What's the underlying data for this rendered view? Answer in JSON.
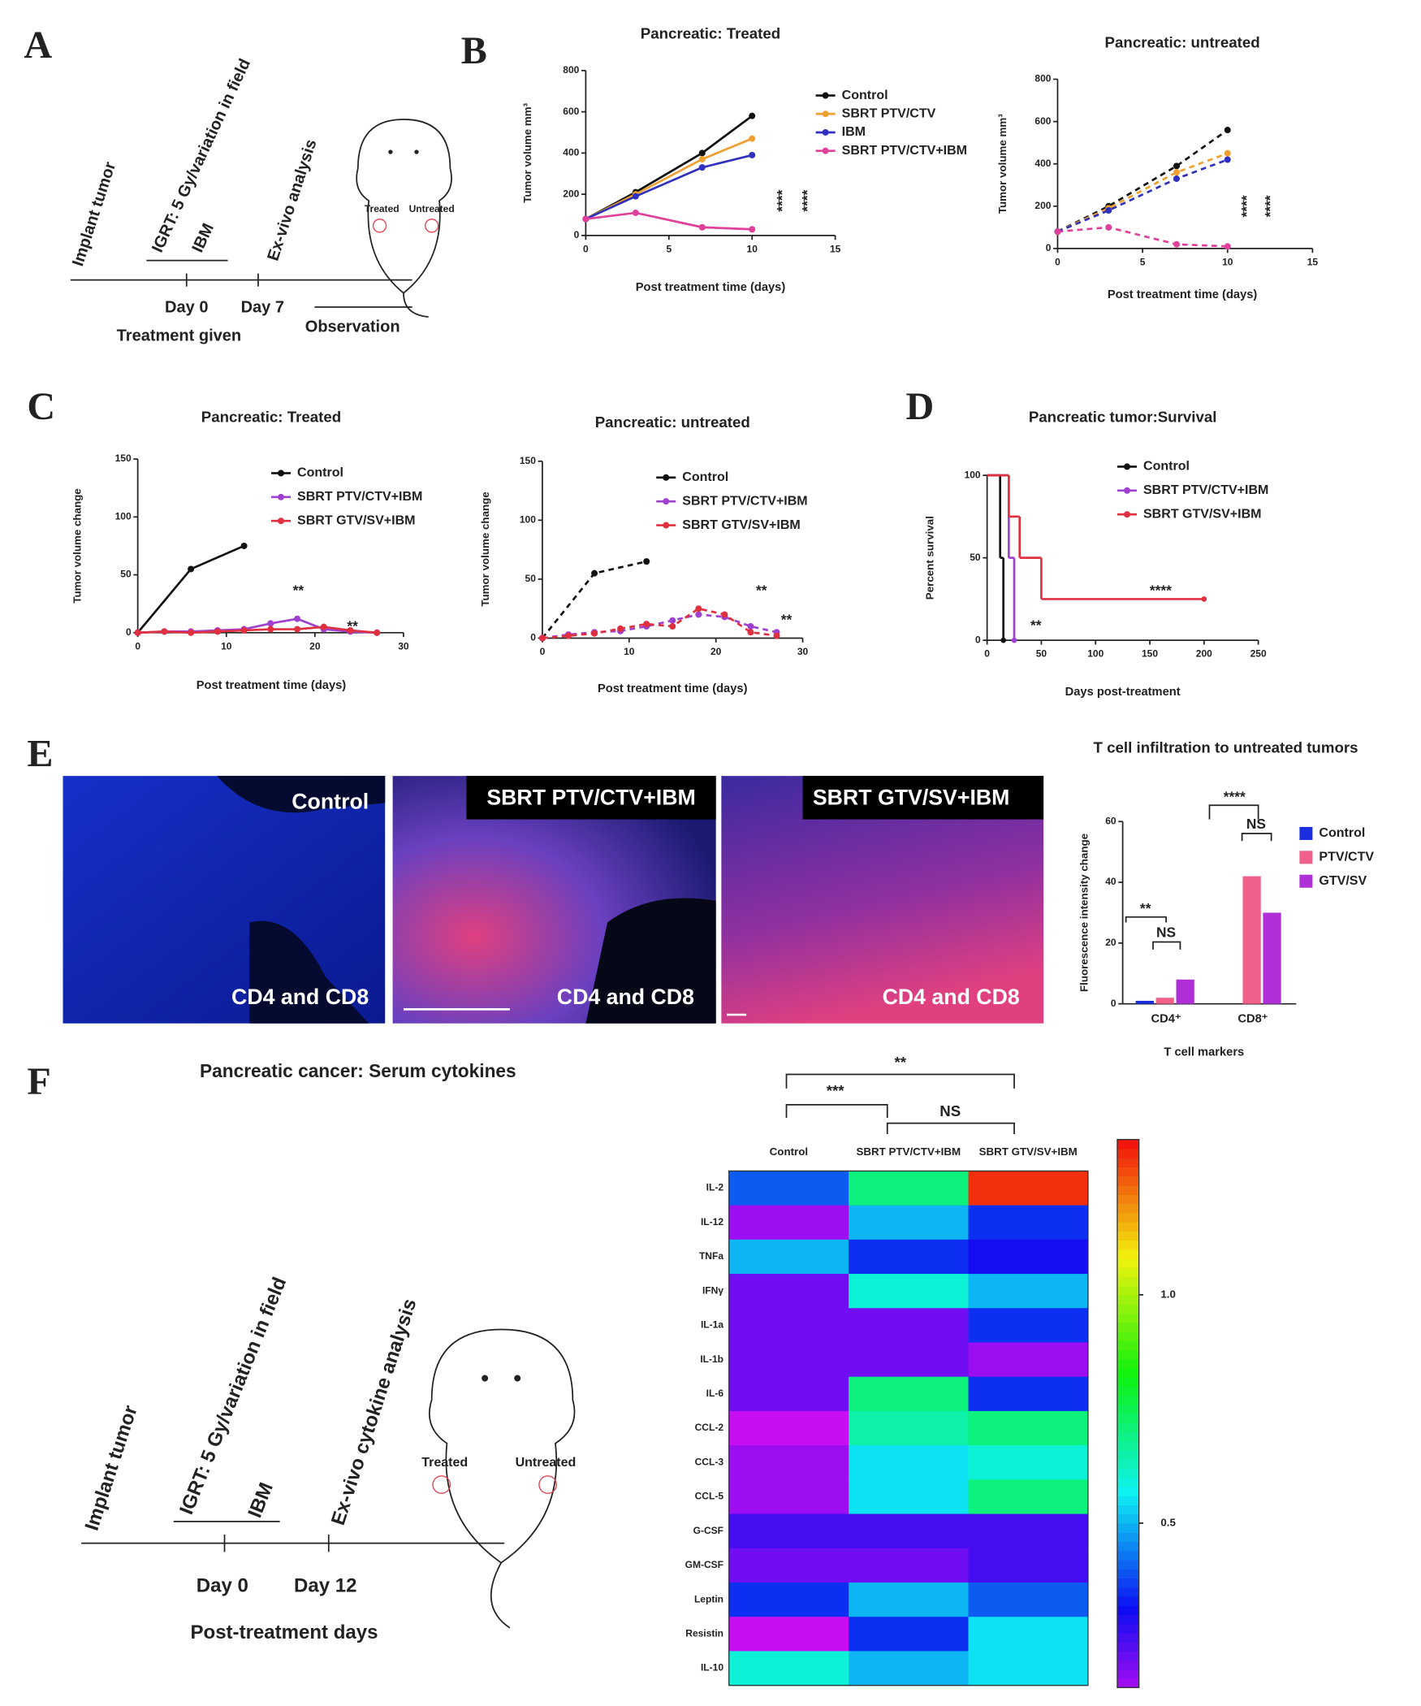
{
  "panel_labels": [
    "A",
    "B",
    "C",
    "D",
    "E",
    "F"
  ],
  "timeline_a": {
    "events": [
      "Implant tumor",
      "IGRT: 5 Gy/variation in field",
      "IBM",
      "Ex-vivo analysis"
    ],
    "days": [
      "Day 0",
      "Day 7"
    ],
    "caption": "Treatment given",
    "observation": "Observation",
    "tumors": [
      "Treated",
      "Untreated"
    ]
  },
  "timeline_f": {
    "events": [
      "Implant tumor",
      "IGRT: 5 Gy/variation in field",
      "IBM",
      "Ex-vivo cytokine analysis"
    ],
    "days": [
      "Day 0",
      "Day 12"
    ],
    "caption": "Post-treatment days",
    "tumors": [
      "Treated",
      "Untreated"
    ]
  },
  "images": [
    {
      "label": "Control",
      "stain": "CD4 and CD8"
    },
    {
      "label": "SBRT PTV/CTV+IBM",
      "stain": "CD4 and CD8"
    },
    {
      "label": "SBRT GTV/SV+IBM",
      "stain": "CD4 and CD8"
    }
  ],
  "chart_data": [
    {
      "type": "line",
      "title": "Pancreatic: Treated",
      "x_label": "Post treatment time (days)",
      "y_label": "Tumor volume mm³",
      "line_style": "solid",
      "x": [
        0,
        3,
        7,
        10
      ],
      "xlim": [
        0,
        15
      ],
      "xticks": [
        0,
        5,
        10,
        15
      ],
      "ylim": [
        0,
        800
      ],
      "yticks": [
        0,
        200,
        400,
        600,
        800
      ],
      "series": [
        {
          "name": "Control",
          "color": "#111111",
          "values": [
            80,
            210,
            400,
            580
          ]
        },
        {
          "name": "SBRT PTV/CTV",
          "color": "#f0a030",
          "values": [
            80,
            200,
            370,
            470
          ]
        },
        {
          "name": "IBM",
          "color": "#3030c0",
          "values": [
            80,
            190,
            330,
            390
          ]
        },
        {
          "name": "SBRT PTV/CTV+IBM",
          "color": "#e0409a",
          "values": [
            80,
            110,
            40,
            30
          ]
        }
      ],
      "annotations": [
        "****",
        "****"
      ]
    },
    {
      "type": "line",
      "title": "Pancreatic: untreated",
      "x_label": "Post treatment time (days)",
      "y_label": "Tumor volume mm³",
      "line_style": "dashed",
      "x": [
        0,
        3,
        7,
        10
      ],
      "xlim": [
        0,
        15
      ],
      "xticks": [
        0,
        5,
        10,
        15
      ],
      "ylim": [
        0,
        800
      ],
      "yticks": [
        0,
        200,
        400,
        600,
        800
      ],
      "series": [
        {
          "color": "#111111",
          "values": [
            80,
            200,
            390,
            560
          ]
        },
        {
          "color": "#f0a030",
          "values": [
            80,
            190,
            360,
            450
          ]
        },
        {
          "color": "#3030c0",
          "values": [
            80,
            180,
            330,
            420
          ]
        },
        {
          "color": "#e0409a",
          "values": [
            80,
            100,
            20,
            10
          ]
        }
      ],
      "annotations": [
        "****",
        "****"
      ]
    },
    {
      "type": "line",
      "title": "Pancreatic: Treated",
      "x_label": "Post treatment time (days)",
      "y_label": "Tumor volume change",
      "line_style": "solid",
      "xlim": [
        0,
        30
      ],
      "xticks": [
        0,
        10,
        20,
        30
      ],
      "ylim": [
        0,
        150
      ],
      "yticks": [
        0,
        50,
        100,
        150
      ],
      "series": [
        {
          "name": "Control",
          "color": "#111111",
          "x": [
            0,
            6,
            12
          ],
          "values": [
            0,
            55,
            75
          ]
        },
        {
          "name": "SBRT PTV/CTV+IBM",
          "color": "#a040d0",
          "x": [
            0,
            3,
            6,
            9,
            12,
            15,
            18,
            21,
            24,
            27
          ],
          "values": [
            0,
            1,
            1,
            2,
            3,
            8,
            12,
            3,
            1,
            0
          ]
        },
        {
          "name": "SBRT GTV/SV+IBM",
          "color": "#e03040",
          "x": [
            0,
            3,
            6,
            9,
            12,
            15,
            18,
            21,
            24,
            27
          ],
          "values": [
            0,
            1,
            0,
            1,
            2,
            3,
            3,
            5,
            2,
            0
          ]
        }
      ],
      "annotations": [
        "**",
        "**"
      ]
    },
    {
      "type": "line",
      "title": "Pancreatic: untreated",
      "x_label": "Post treatment time (days)",
      "y_label": "Tumor volume change",
      "line_style": "dashed",
      "xlim": [
        0,
        30
      ],
      "xticks": [
        0,
        10,
        20,
        30
      ],
      "ylim": [
        0,
        150
      ],
      "yticks": [
        0,
        50,
        100,
        150
      ],
      "series": [
        {
          "name": "Control",
          "color": "#111111",
          "x": [
            0,
            6,
            12
          ],
          "values": [
            0,
            55,
            65
          ]
        },
        {
          "name": "SBRT PTV/CTV+IBM",
          "color": "#a040d0",
          "x": [
            0,
            3,
            6,
            9,
            12,
            15,
            18,
            21,
            24,
            27
          ],
          "values": [
            0,
            3,
            5,
            6,
            10,
            15,
            20,
            18,
            10,
            5
          ]
        },
        {
          "name": "SBRT GTV/SV+IBM",
          "color": "#e03040",
          "x": [
            0,
            3,
            6,
            9,
            12,
            15,
            18,
            21,
            24,
            27
          ],
          "values": [
            0,
            2,
            4,
            8,
            12,
            10,
            25,
            20,
            5,
            2
          ]
        }
      ],
      "annotations": [
        "**",
        "**"
      ]
    },
    {
      "type": "line",
      "step": true,
      "title": "Pancreatic tumor:Survival",
      "x_label": "Days post-treatment",
      "y_label": "Percent survival",
      "line_style": "solid",
      "xlim": [
        0,
        250
      ],
      "xticks": [
        0,
        50,
        100,
        150,
        200,
        250
      ],
      "ylim": [
        0,
        100
      ],
      "yticks": [
        0,
        50,
        100
      ],
      "series": [
        {
          "name": "Control",
          "color": "#111111",
          "x": [
            0,
            12,
            15
          ],
          "values": [
            100,
            50,
            0
          ]
        },
        {
          "name": "SBRT PTV/CTV+IBM",
          "color": "#a040d0",
          "x": [
            0,
            20,
            25
          ],
          "values": [
            100,
            50,
            0
          ]
        },
        {
          "name": "SBRT GTV/SV+IBM",
          "color": "#e03040",
          "x": [
            0,
            20,
            30,
            50,
            200
          ],
          "values": [
            100,
            75,
            50,
            25,
            25
          ]
        }
      ],
      "annotations": [
        "****",
        "**"
      ]
    },
    {
      "type": "bar",
      "title": "T cell infiltration to untreated tumors",
      "x_label": "T cell markers",
      "y_label": "Fluorescence intensity change",
      "categories": [
        "CD4⁺",
        "CD8⁺"
      ],
      "ylim": [
        0,
        60
      ],
      "yticks": [
        0,
        20,
        40,
        60
      ],
      "series": [
        {
          "name": "Control",
          "color": "#1a2ee0",
          "values": [
            1,
            0
          ]
        },
        {
          "name": "PTV/CTV",
          "color": "#f0608a",
          "values": [
            2,
            42
          ]
        },
        {
          "name": "GTV/SV",
          "color": "#b030d8",
          "values": [
            8,
            30
          ]
        }
      ],
      "annotations": [
        "**",
        "NS",
        "****",
        "NS"
      ]
    },
    {
      "type": "heatmap",
      "title": "Pancreatic cancer: Serum cytokines",
      "columns": [
        "Control",
        "SBRT PTV/CTV+IBM",
        "SBRT GTV/SV+IBM"
      ],
      "rows": [
        "IL-2",
        "IL-12",
        "TNFa",
        "IFNγ",
        "IL-1a",
        "IL-1b",
        "IL-6",
        "CCL-2",
        "CCL-3",
        "CCL-5",
        "G-CSF",
        "GM-CSF",
        "Leptin",
        "Resistin",
        "IL-10"
      ],
      "values": [
        [
          0.4,
          0.7,
          1.3
        ],
        [
          0.15,
          0.5,
          0.35
        ],
        [
          0.5,
          0.35,
          0.3
        ],
        [
          0.2,
          0.6,
          0.5
        ],
        [
          0.2,
          0.2,
          0.35
        ],
        [
          0.2,
          0.2,
          0.15
        ],
        [
          0.2,
          0.7,
          0.35
        ],
        [
          0.1,
          0.65,
          0.7
        ],
        [
          0.15,
          0.55,
          0.6
        ],
        [
          0.15,
          0.55,
          0.7
        ],
        [
          0.25,
          0.25,
          0.25
        ],
        [
          0.2,
          0.2,
          0.25
        ],
        [
          0.35,
          0.5,
          0.4
        ],
        [
          0.1,
          0.35,
          0.55
        ],
        [
          0.6,
          0.5,
          0.55
        ]
      ],
      "zlim": [
        0.14,
        1.34
      ],
      "zticks": [
        0.5,
        {
          "value": 1,
          "label": "1.0"
        }
      ],
      "annotations": [
        "***",
        "**",
        "NS"
      ]
    }
  ]
}
